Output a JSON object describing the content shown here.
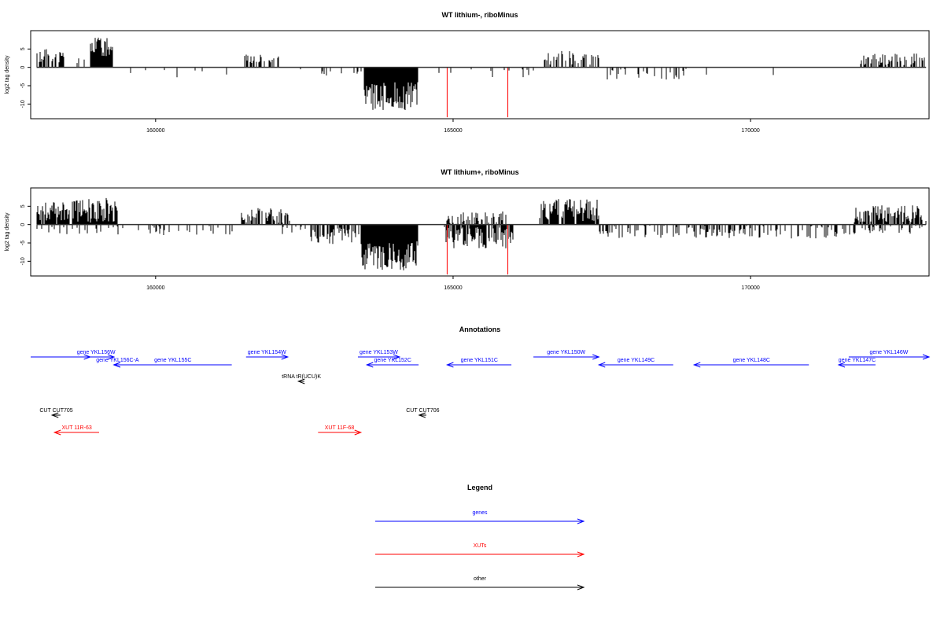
{
  "chart_data": [
    {
      "type": "bar",
      "title": "WT lithium-, riboMinus",
      "ylabel": "log2 tag density",
      "xlim": [
        157900,
        173000
      ],
      "ylim": [
        -14,
        10
      ],
      "yticks": [
        -10,
        -5,
        0,
        5
      ],
      "xticks": [
        160000,
        165000,
        170000
      ],
      "bar_color": "#000000",
      "marker_color": "#ff0000",
      "markers": [
        {
          "x": 164900,
          "y0": 0,
          "y1": -13.6
        },
        {
          "x": 165920,
          "y0": 0,
          "y1": -13.6
        }
      ],
      "segments": [
        {
          "start": 158000,
          "end": 158450,
          "strand": "+",
          "mean": 3.0,
          "spread": 2.0,
          "density": 0.55
        },
        {
          "start": 158650,
          "end": 158850,
          "strand": "+",
          "mean": 1.6,
          "spread": 1.0,
          "density": 0.25
        },
        {
          "start": 158900,
          "end": 159280,
          "strand": "+",
          "mean": 5.5,
          "spread": 2.8,
          "density": 1.0
        },
        {
          "start": 161500,
          "end": 162080,
          "strand": "+",
          "mean": 2.5,
          "spread": 1.3,
          "density": 0.55
        },
        {
          "start": 166500,
          "end": 167450,
          "strand": "+",
          "mean": 2.5,
          "spread": 2.0,
          "density": 0.45
        },
        {
          "start": 171850,
          "end": 172950,
          "strand": "+",
          "mean": 2.2,
          "spread": 1.6,
          "density": 0.55
        },
        {
          "start": 163500,
          "end": 164400,
          "strand": "-",
          "mean": 8.0,
          "spread": 4.0,
          "density": 1.0
        },
        {
          "start": 163300,
          "end": 163500,
          "strand": "-",
          "mean": 1.5,
          "spread": 1.2,
          "density": 0.15
        },
        {
          "start": 164480,
          "end": 166400,
          "strand": "-",
          "mean": 1.5,
          "spread": 1.5,
          "density": 0.04
        },
        {
          "start": 167500,
          "end": 169000,
          "strand": "-",
          "mean": 1.8,
          "spread": 1.6,
          "density": 0.2
        },
        {
          "start": 159300,
          "end": 161300,
          "strand": "-",
          "mean": 1.5,
          "spread": 1.2,
          "density": 0.05
        },
        {
          "start": 162200,
          "end": 163300,
          "strand": "-",
          "mean": 1.4,
          "spread": 1.2,
          "density": 0.06
        },
        {
          "start": 169000,
          "end": 171600,
          "strand": "-",
          "mean": 1.6,
          "spread": 1.5,
          "density": 0.05
        }
      ]
    },
    {
      "type": "bar",
      "title": "WT lithium+, riboMinus",
      "ylabel": "log2 tag density",
      "xlim": [
        157900,
        173000
      ],
      "ylim": [
        -14,
        10
      ],
      "yticks": [
        -10,
        -5,
        0,
        5
      ],
      "xticks": [
        160000,
        165000,
        170000
      ],
      "bar_color": "#000000",
      "marker_color": "#ff0000",
      "markers": [
        {
          "x": 164900,
          "y0": 0,
          "y1": -13.6
        },
        {
          "x": 165920,
          "y0": 0,
          "y1": -13.6
        }
      ],
      "segments": [
        {
          "start": 158000,
          "end": 158550,
          "strand": "+",
          "mean": 3.5,
          "spread": 2.6,
          "density": 0.95
        },
        {
          "start": 158600,
          "end": 159350,
          "strand": "+",
          "mean": 4.0,
          "spread": 3.5,
          "density": 1.0
        },
        {
          "start": 161450,
          "end": 162250,
          "strand": "+",
          "mean": 2.5,
          "spread": 2.0,
          "density": 0.6
        },
        {
          "start": 164900,
          "end": 165900,
          "strand": "+",
          "mean": 1.8,
          "spread": 1.8,
          "density": 0.5
        },
        {
          "start": 166450,
          "end": 167450,
          "strand": "+",
          "mean": 4.0,
          "spread": 3.0,
          "density": 0.9
        },
        {
          "start": 171750,
          "end": 172950,
          "strand": "+",
          "mean": 2.8,
          "spread": 2.5,
          "density": 0.8
        },
        {
          "start": 162600,
          "end": 163450,
          "strand": "-",
          "mean": 3.0,
          "spread": 2.5,
          "density": 0.6
        },
        {
          "start": 163450,
          "end": 164400,
          "strand": "-",
          "mean": 8.5,
          "spread": 4.0,
          "density": 1.0
        },
        {
          "start": 164850,
          "end": 166000,
          "strand": "-",
          "mean": 3.5,
          "spread": 3.0,
          "density": 0.8
        },
        {
          "start": 158000,
          "end": 161300,
          "strand": "-",
          "mean": 1.6,
          "spread": 1.3,
          "density": 0.2
        },
        {
          "start": 162100,
          "end": 162600,
          "strand": "-",
          "mean": 1.5,
          "spread": 1.3,
          "density": 0.2
        },
        {
          "start": 167450,
          "end": 171700,
          "strand": "-",
          "mean": 2.0,
          "spread": 1.8,
          "density": 0.35
        },
        {
          "start": 171700,
          "end": 172900,
          "strand": "-",
          "mean": 1.5,
          "spread": 1.2,
          "density": 0.3
        }
      ]
    }
  ],
  "annotations": {
    "title": "Annotations",
    "features": [
      {
        "label": "",
        "kind": "gene",
        "strand": "+",
        "start": 157900,
        "end": 158900,
        "row": 0
      },
      {
        "label": "gene YKL156W",
        "kind": "gene",
        "strand": "+",
        "start": 158700,
        "end": 159300,
        "row": 0
      },
      {
        "label": "gene YKL156C-A",
        "kind": "gene",
        "strand": "-",
        "start": 159300,
        "end": 159420,
        "row": 1
      },
      {
        "label": "gene YKL155C",
        "kind": "gene",
        "strand": "-",
        "start": 159300,
        "end": 161280,
        "row": 1
      },
      {
        "label": "gene YKL154W",
        "kind": "gene",
        "strand": "+",
        "start": 161520,
        "end": 162220,
        "row": 0
      },
      {
        "label": "gene YKL153W",
        "kind": "gene",
        "strand": "+",
        "start": 163400,
        "end": 164100,
        "row": 0
      },
      {
        "label": "gene YKL152C",
        "kind": "gene",
        "strand": "-",
        "start": 163550,
        "end": 164420,
        "row": 1
      },
      {
        "label": "gene YKL151C",
        "kind": "gene",
        "strand": "-",
        "start": 164900,
        "end": 165980,
        "row": 1
      },
      {
        "label": "gene YKL150W",
        "kind": "gene",
        "strand": "+",
        "start": 166350,
        "end": 167450,
        "row": 0
      },
      {
        "label": "gene YKL149C",
        "kind": "gene",
        "strand": "-",
        "start": 167450,
        "end": 168700,
        "row": 1
      },
      {
        "label": "gene YKL148C",
        "kind": "gene",
        "strand": "-",
        "start": 169050,
        "end": 170980,
        "row": 1
      },
      {
        "label": "gene YKL147C",
        "kind": "gene",
        "strand": "-",
        "start": 171480,
        "end": 172100,
        "row": 1
      },
      {
        "label": "gene YKL146W",
        "kind": "gene",
        "strand": "+",
        "start": 171650,
        "end": 173200,
        "row": 0
      },
      {
        "label": "tRNA tR(UCU)K",
        "kind": "other",
        "strand": "-",
        "start": 162400,
        "end": 162500,
        "row": 2
      },
      {
        "label": "CUT CUT705",
        "kind": "other",
        "strand": "-",
        "start": 158260,
        "end": 158400,
        "row": 3
      },
      {
        "label": "CUT CUT706",
        "kind": "other",
        "strand": "-",
        "start": 164430,
        "end": 164550,
        "row": 3
      },
      {
        "label": "XUT 11R-63",
        "kind": "xut",
        "strand": "-",
        "start": 158300,
        "end": 159050,
        "row": 4
      },
      {
        "label": "XUT 11F-68",
        "kind": "xut",
        "strand": "+",
        "start": 162730,
        "end": 163450,
        "row": 4
      }
    ]
  },
  "legend": {
    "title": "Legend",
    "items": [
      {
        "label": "genes",
        "kind": "gene"
      },
      {
        "label": "XUTs",
        "kind": "xut"
      },
      {
        "label": "other",
        "kind": "other"
      }
    ]
  },
  "colors": {
    "gene": "#0000ff",
    "xut": "#ff0000",
    "other": "#000000"
  }
}
